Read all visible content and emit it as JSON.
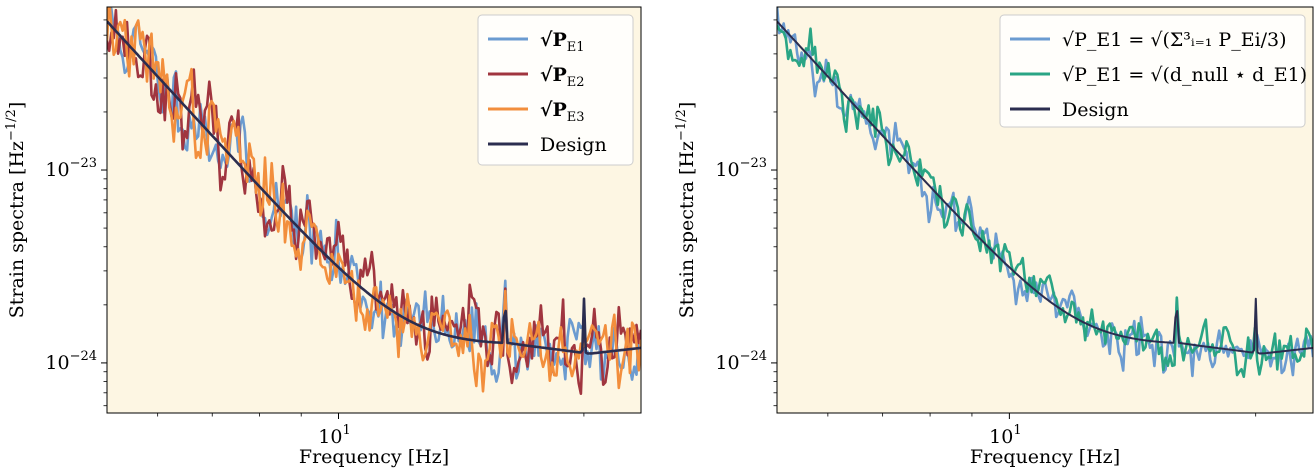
{
  "chart_data": [
    {
      "type": "line",
      "xlabel": "Frequency [Hz]",
      "ylabel": "Strain spectra [Hz^-1/2]",
      "xscale": "log",
      "yscale": "log",
      "xlim": [
        5.2,
        23.5
      ],
      "ylim": [
        5.5e-25,
        7e-23
      ],
      "x_ticks": [
        {
          "value": 10,
          "label": "10^1"
        }
      ],
      "y_ticks": [
        {
          "value": 1e-23,
          "label": "10^-23"
        },
        {
          "value": 1e-24,
          "label": "10^-24"
        }
      ],
      "background": "#fdf6e3",
      "grid": false,
      "legend_position": "upper right",
      "series": [
        {
          "name": "√P_E1",
          "legend_text": "√P",
          "legend_sub": "E1",
          "color": "#6b9bd0",
          "width": 2.6,
          "kind": "noisy",
          "seed": 11,
          "noise": 0.09,
          "peaks": true
        },
        {
          "name": "√P_E2",
          "legend_text": "√P",
          "legend_sub": "E2",
          "color": "#a0353f",
          "width": 2.6,
          "kind": "noisy",
          "seed": 23,
          "noise": 0.09,
          "peaks": true
        },
        {
          "name": "√P_E3",
          "legend_text": "√P",
          "legend_sub": "E3",
          "color": "#f28e3c",
          "width": 2.6,
          "kind": "noisy",
          "seed": 37,
          "noise": 0.09,
          "peaks": true
        },
        {
          "name": "Design",
          "legend_text": "Design",
          "legend_sub": "",
          "color": "#2b2d4f",
          "width": 2.6,
          "kind": "design"
        }
      ]
    },
    {
      "type": "line",
      "xlabel": "Frequency [Hz]",
      "ylabel": "Strain spectra [Hz^-1/2]",
      "xscale": "log",
      "yscale": "log",
      "xlim": [
        5.2,
        23.5
      ],
      "ylim": [
        5.5e-25,
        7e-23
      ],
      "x_ticks": [
        {
          "value": 10,
          "label": "10^1"
        }
      ],
      "y_ticks": [
        {
          "value": 1e-23,
          "label": "10^-23"
        },
        {
          "value": 1e-24,
          "label": "10^-24"
        }
      ],
      "background": "#fdf6e3",
      "grid": false,
      "legend_position": "upper right",
      "series": [
        {
          "name": "√P_E1 = √(Σ_{i=1}^3 P_Ei/3)",
          "legend_text": "√P_E1 = √(Σ³ᵢ₌₁ P_Ei/3)",
          "legend_sub": "",
          "color": "#6b9bd0",
          "width": 2.6,
          "kind": "noisy",
          "seed": 53,
          "noise": 0.06,
          "peaks": true
        },
        {
          "name": "√P_E1 = √(d_null ⋆ d_E1)",
          "legend_text": "√P_E1 = √(d_null ⋆ d_E1)",
          "legend_sub": "",
          "color": "#2aa585",
          "width": 2.6,
          "kind": "noisy",
          "seed": 71,
          "noise": 0.06,
          "peaks": true
        },
        {
          "name": "Design",
          "legend_text": "Design",
          "legend_sub": "",
          "color": "#2b2d4f",
          "width": 2.0,
          "kind": "design"
        }
      ]
    }
  ]
}
